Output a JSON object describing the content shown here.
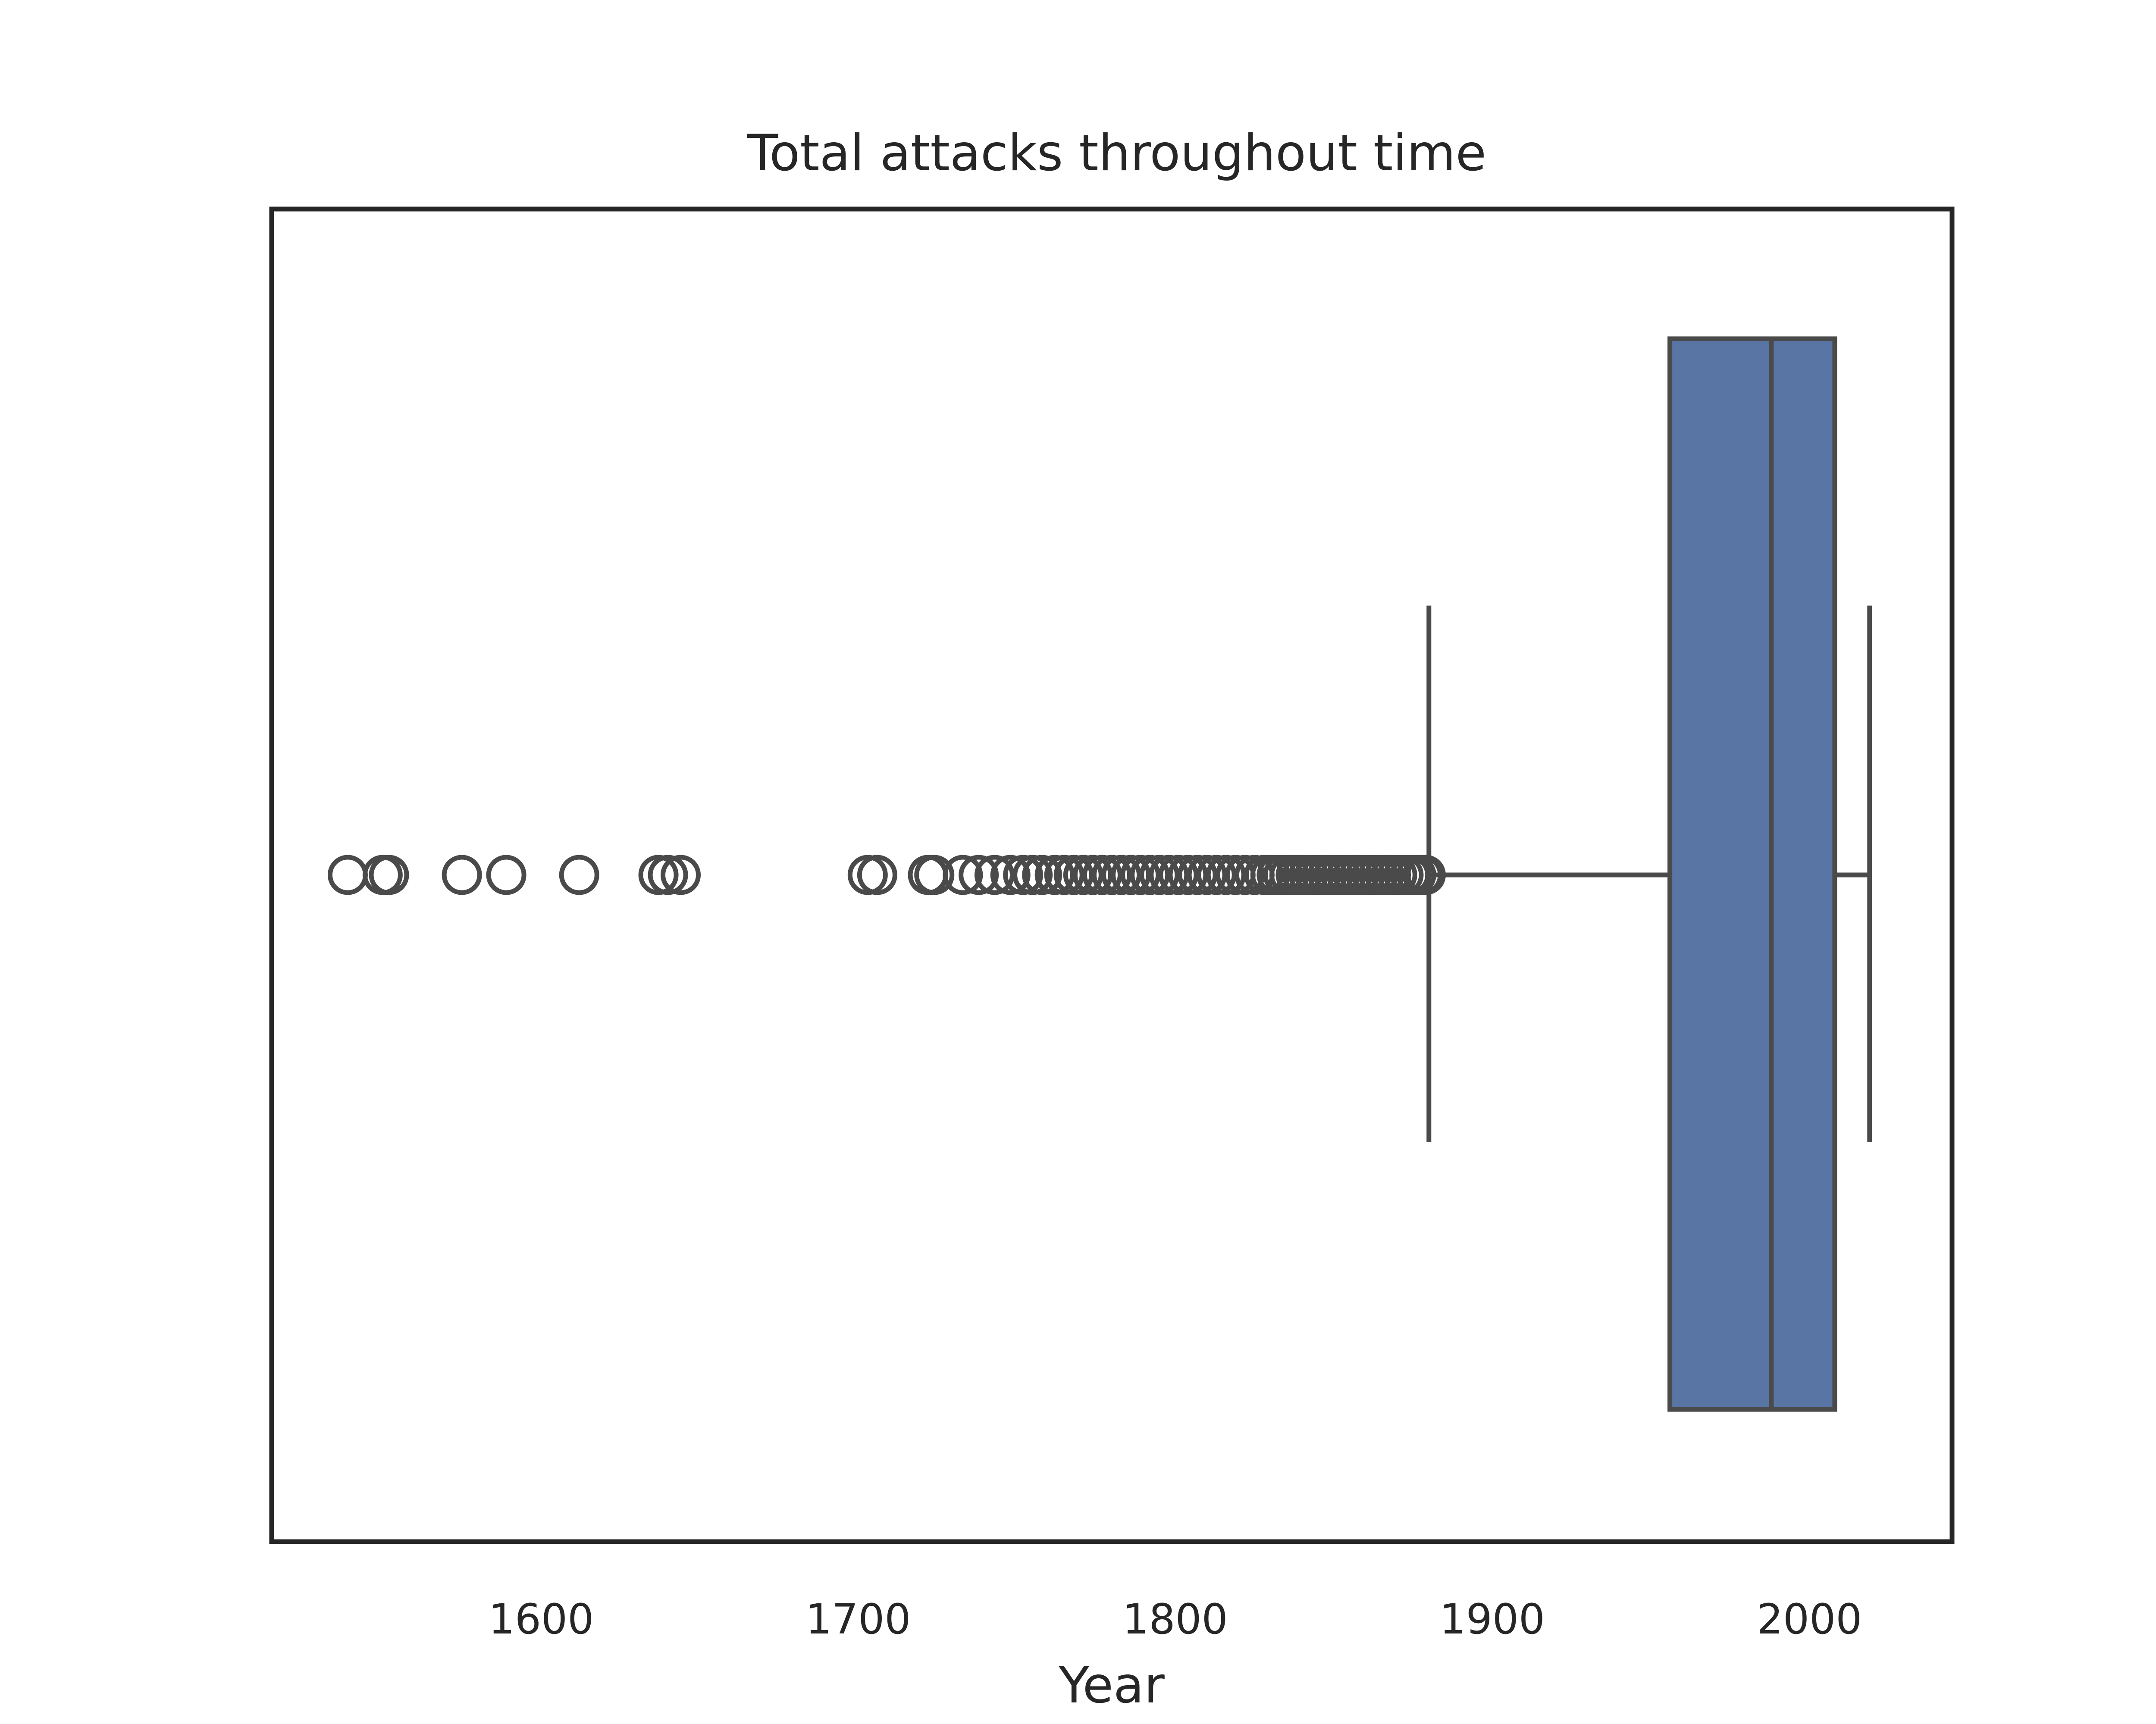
{
  "chart_data": {
    "type": "box",
    "orientation": "horizontal",
    "title": "Total attacks throughout time",
    "xlabel": "Year",
    "ylabel": "",
    "xlim": [
      1515,
      2045
    ],
    "x_ticks": [
      1600,
      1700,
      1800,
      1900,
      2000
    ],
    "x_tick_labels": [
      "1600",
      "1700",
      "1800",
      "1900",
      "2000"
    ],
    "grid": false,
    "legend": "none",
    "box": {
      "whisker_low": 1880,
      "q1": 1956,
      "median": 1988,
      "q3": 2008,
      "whisker_high": 2019
    },
    "outliers": [
      1539,
      1550,
      1552,
      1575,
      1589,
      1612,
      1637,
      1640,
      1644,
      1703,
      1706,
      1722,
      1724,
      1733,
      1738,
      1743,
      1748,
      1752,
      1755,
      1758,
      1762,
      1765,
      1768,
      1771,
      1774,
      1777,
      1780,
      1783,
      1786,
      1789,
      1792,
      1795,
      1798,
      1801,
      1804,
      1807,
      1810,
      1813,
      1816,
      1819,
      1822,
      1825,
      1828,
      1830,
      1832,
      1834,
      1836,
      1838,
      1840,
      1842,
      1844,
      1846,
      1848,
      1850,
      1852,
      1854,
      1856,
      1858,
      1860,
      1862,
      1864,
      1866,
      1868,
      1870,
      1872,
      1874,
      1876,
      1878,
      1879
    ],
    "colors": {
      "box_fill": "#5975a4",
      "line": "#4a4a4a",
      "frame": "#262626",
      "outlier_stroke": "#4a4a4a"
    }
  }
}
